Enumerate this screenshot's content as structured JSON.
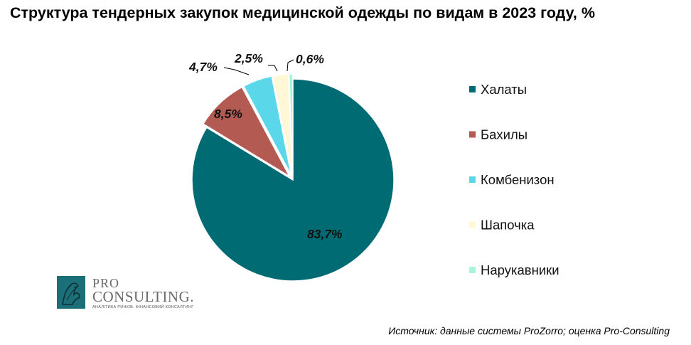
{
  "title": "Структура тендерных закупок медицинской одежды по видам в 2023 году, %",
  "chart_data": {
    "type": "pie",
    "title": "Структура тендерных закупок медицинской одежды по видам в 2023 году, %",
    "slices": [
      {
        "name": "Халаты",
        "value": 83.7,
        "label": "83,7%",
        "color": "#006b73"
      },
      {
        "name": "Бахилы",
        "value": 8.5,
        "label": "8,5%",
        "color": "#b35a52"
      },
      {
        "name": "Комбенизон",
        "value": 4.7,
        "label": "4,7%",
        "color": "#5ad8ea"
      },
      {
        "name": "Шапочка",
        "value": 2.5,
        "label": "2,5%",
        "color": "#fff7d6"
      },
      {
        "name": "Нарукавники",
        "value": 0.6,
        "label": "0,6%",
        "color": "#a8f5dc"
      }
    ],
    "legend_position": "right"
  },
  "logo": {
    "line1": "PRO",
    "line2": "CONSULTING.",
    "tagline": "АНАЛІТИКА РИНКІВ. ФІНАНСОВИЙ КОНСАЛТИНГ"
  },
  "source": "Источник: данные системы ProZorro; оценка Pro-Consulting"
}
